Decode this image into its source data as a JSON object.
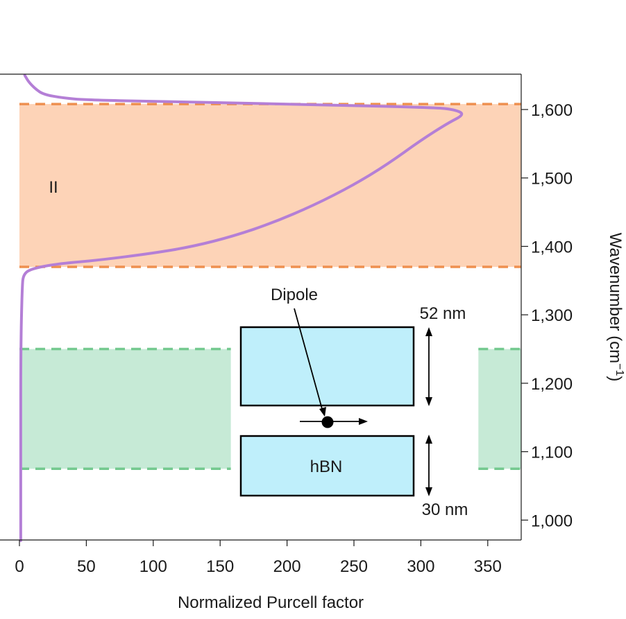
{
  "chart_data": {
    "type": "line",
    "xlabel": "Normalized Purcell factor",
    "ylabel": "Wavenumber (cm",
    "ylabel_sup": "−1",
    "ylabel_close": ")",
    "xlim": [
      0,
      375
    ],
    "ylim": [
      970,
      1650
    ],
    "x_ticks": [
      0,
      50,
      100,
      150,
      200,
      250,
      300,
      350
    ],
    "x_tick_labels": [
      "0",
      "50",
      "100",
      "150",
      "200",
      "250",
      "300",
      "350"
    ],
    "y_ticks": [
      1000,
      1100,
      1200,
      1300,
      1400,
      1500,
      1600
    ],
    "y_tick_labels": [
      "1,000",
      "1,100",
      "1,200",
      "1,300",
      "1,400",
      "1,500",
      "1,600"
    ],
    "grid": false,
    "series": [
      {
        "color": "#b47fd6",
        "points": [
          [
            1,
            970
          ],
          [
            1,
            1100
          ],
          [
            1,
            1250
          ],
          [
            2,
            1340
          ],
          [
            3,
            1360
          ],
          [
            10,
            1368
          ],
          [
            30,
            1375
          ],
          [
            60,
            1380
          ],
          [
            100,
            1390
          ],
          [
            130,
            1400
          ],
          [
            160,
            1415
          ],
          [
            190,
            1435
          ],
          [
            220,
            1460
          ],
          [
            250,
            1490
          ],
          [
            275,
            1520
          ],
          [
            300,
            1555
          ],
          [
            320,
            1580
          ],
          [
            333,
            1593
          ],
          [
            325,
            1600
          ],
          [
            310,
            1603
          ],
          [
            200,
            1608
          ],
          [
            100,
            1612
          ],
          [
            50,
            1614
          ],
          [
            32,
            1617
          ],
          [
            18,
            1622
          ],
          [
            12,
            1630
          ],
          [
            7,
            1640
          ],
          [
            4,
            1650
          ]
        ]
      }
    ],
    "bands": [
      {
        "name": "II",
        "y_from": 1370,
        "y_to": 1608,
        "x_from": 0,
        "x_to": 375,
        "fill": "#fdd3b7",
        "line": "#ee9050"
      },
      {
        "name": "",
        "y_from": 1075,
        "y_to": 1250,
        "x_from": 0,
        "x_to": 158,
        "fill": "#c6ead6",
        "line": "#74c98f"
      },
      {
        "name": "",
        "y_from": 1075,
        "y_to": 1250,
        "x_from": 343,
        "x_to": 375,
        "fill": "#c6ead6",
        "line": "#74c98f"
      }
    ],
    "inset": {
      "dipole_label": "Dipole",
      "material_label": "hBN",
      "top_thickness": "52 nm",
      "bottom_thickness": "30 nm",
      "slab_fill": "#bfeffb"
    }
  }
}
